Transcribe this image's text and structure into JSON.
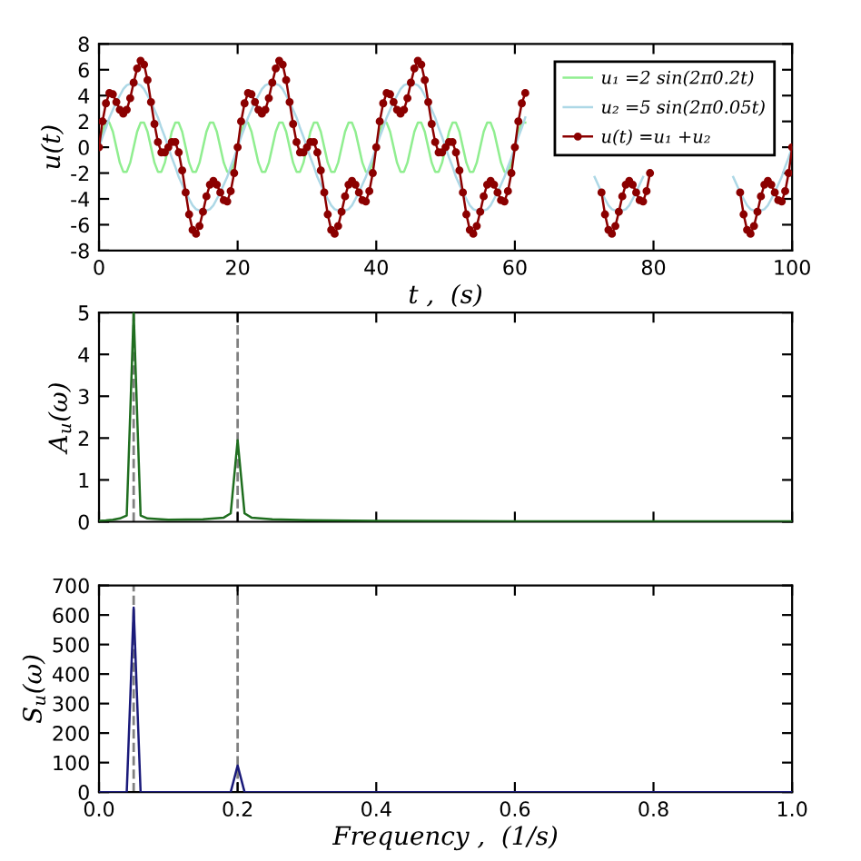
{
  "chart_data": [
    {
      "type": "line",
      "xlabel": "t ,  (s)",
      "ylabel": "u(t)",
      "xlim": [
        0,
        100
      ],
      "xticks": [
        0,
        20,
        40,
        60,
        80,
        100
      ],
      "ylim": [
        -8,
        8
      ],
      "yticks": [
        -8,
        -6,
        -4,
        -2,
        0,
        2,
        4,
        6,
        8
      ],
      "grid": false,
      "legend": "top right",
      "x": [
        0,
        0.5,
        1,
        1.5,
        2,
        2.5,
        3,
        3.5,
        4,
        4.5,
        5,
        5.5,
        6,
        6.5,
        7,
        7.5,
        8,
        8.5,
        9,
        9.5,
        10,
        10.5,
        11,
        11.5,
        12,
        12.5,
        13,
        13.5,
        14,
        14.5,
        15,
        15.5,
        16,
        16.5,
        17,
        17.5,
        18,
        18.5,
        19,
        19.5,
        20,
        20.5,
        21,
        21.5,
        22,
        22.5,
        23,
        23.5,
        24,
        24.5,
        25,
        25.5,
        26,
        26.5,
        27,
        27.5,
        28,
        28.5,
        29,
        29.5,
        30,
        30.5,
        31,
        31.5,
        32,
        32.5,
        33,
        33.5,
        34,
        34.5,
        35,
        35.5,
        36,
        36.5,
        37,
        37.5,
        38,
        38.5,
        39,
        39.5,
        40,
        40.5,
        41,
        41.5,
        42,
        42.5,
        43,
        43.5,
        44,
        44.5,
        45,
        45.5,
        46,
        46.5,
        47,
        47.5,
        48,
        48.5,
        49,
        49.5,
        50,
        50.5,
        51,
        51.5,
        52,
        52.5,
        53,
        53.5,
        54,
        54.5,
        55,
        55.5,
        56,
        56.5,
        57,
        57.5,
        58,
        58.5,
        59,
        59.5,
        60,
        60.5,
        61,
        61.5,
        62,
        62.5,
        63,
        63.5,
        64,
        64.5,
        65,
        65.5,
        66,
        66.5,
        67,
        67.5,
        68,
        68.5,
        69,
        69.5,
        70,
        70.5,
        71,
        71.5,
        72,
        72.5,
        73,
        73.5,
        74,
        74.5,
        75,
        75.5,
        76,
        76.5,
        77,
        77.5,
        78,
        78.5,
        79,
        79.5,
        80,
        80.5,
        81,
        81.5,
        82,
        82.5,
        83,
        83.5,
        84,
        84.5,
        85,
        85.5,
        86,
        86.5,
        87,
        87.5,
        88,
        88.5,
        89,
        89.5,
        90,
        90.5,
        91,
        91.5,
        92,
        92.5,
        93,
        93.5,
        94,
        94.5,
        95,
        95.5,
        96,
        96.5,
        97,
        97.5,
        98,
        98.5,
        99,
        99.5,
        100
      ],
      "series": [
        {
          "name": "u₁ =2 sin(2π0.2t)",
          "color": "#90ee90",
          "marker": "none",
          "values": [
            0,
            1.2,
            1.9,
            1.9,
            1.2,
            0,
            -1.2,
            -1.9,
            -1.9,
            -1.2,
            0,
            1.2,
            1.9,
            1.9,
            1.2,
            0,
            -1.2,
            -1.9,
            -1.9,
            -1.2,
            0,
            1.2,
            1.9,
            1.9,
            1.2,
            0,
            -1.2,
            -1.9,
            -1.9,
            -1.2,
            0,
            1.2,
            1.9,
            1.9,
            1.2,
            0,
            -1.2,
            -1.9,
            -1.9,
            -1.2,
            0,
            1.2,
            1.9,
            1.9,
            1.2,
            0,
            -1.2,
            -1.9,
            -1.9,
            -1.2,
            0,
            1.2,
            1.9,
            1.9,
            1.2,
            0,
            -1.2,
            -1.9,
            -1.9,
            -1.2,
            0,
            1.2,
            1.9,
            1.9,
            1.2,
            0,
            -1.2,
            -1.9,
            -1.9,
            -1.2,
            0,
            1.2,
            1.9,
            1.9,
            1.2,
            0,
            -1.2,
            -1.9,
            -1.9,
            -1.2,
            0,
            1.2,
            1.9,
            1.9,
            1.2,
            0,
            -1.2,
            -1.9,
            -1.9,
            -1.2,
            0,
            1.2,
            1.9,
            1.9,
            1.2,
            0,
            -1.2,
            -1.9,
            -1.9,
            -1.2,
            0,
            1.2,
            1.9,
            1.9,
            1.2,
            0,
            -1.2,
            -1.9,
            -1.9,
            -1.2,
            0,
            1.2,
            1.9,
            1.9,
            1.2,
            0,
            -1.2,
            -1.9,
            -1.9,
            -1.2,
            0,
            1.2,
            1.9,
            1.9,
            null,
            null,
            null,
            null,
            null,
            null,
            null,
            null,
            null,
            null,
            null,
            null,
            null,
            null,
            null,
            null,
            null,
            null,
            null,
            null,
            null,
            null,
            null,
            null,
            null,
            null,
            null,
            null,
            null,
            null,
            null,
            null,
            null,
            null,
            null,
            null,
            null,
            null,
            null,
            null,
            null,
            null,
            null,
            null,
            null,
            null,
            null,
            null,
            null,
            null,
            null,
            null,
            null,
            null,
            null,
            null,
            null,
            null,
            null,
            null,
            null,
            null,
            null,
            null,
            null,
            null,
            null,
            null,
            null,
            null,
            null,
            null,
            null,
            null,
            null,
            null,
            null
          ]
        },
        {
          "name": "u₂ =5 sin(2π0.05t)",
          "color": "#add8e6",
          "marker": "none",
          "values": [
            0,
            0.8,
            1.5,
            2.3,
            2.9,
            3.5,
            4.0,
            4.5,
            4.8,
            4.9,
            5.0,
            4.9,
            4.8,
            4.5,
            4.0,
            3.5,
            2.9,
            2.3,
            1.5,
            0.8,
            0,
            -0.8,
            -1.5,
            -2.3,
            -2.9,
            -3.5,
            -4.0,
            -4.5,
            -4.8,
            -4.9,
            -5.0,
            -4.9,
            -4.8,
            -4.5,
            -4.0,
            -3.5,
            -2.9,
            -2.3,
            -1.5,
            -0.8,
            0,
            0.8,
            1.5,
            2.3,
            2.9,
            3.5,
            4.0,
            4.5,
            4.8,
            4.9,
            5.0,
            4.9,
            4.8,
            4.5,
            4.0,
            3.5,
            2.9,
            2.3,
            1.5,
            0.8,
            0,
            -0.8,
            -1.5,
            -2.3,
            -2.9,
            -3.5,
            -4.0,
            -4.5,
            -4.8,
            -4.9,
            -5.0,
            -4.9,
            -4.8,
            -4.5,
            -4.0,
            -3.5,
            -2.9,
            -2.3,
            -1.5,
            -0.8,
            0,
            0.8,
            1.5,
            2.3,
            2.9,
            3.5,
            4.0,
            4.5,
            4.8,
            4.9,
            5.0,
            4.9,
            4.8,
            4.5,
            4.0,
            3.5,
            2.9,
            2.3,
            1.5,
            0.8,
            0,
            -0.8,
            -1.5,
            -2.3,
            -2.9,
            -3.5,
            -4.0,
            -4.5,
            -4.8,
            -4.9,
            -5.0,
            -4.9,
            -4.8,
            -4.5,
            -4.0,
            -3.5,
            -2.9,
            -2.3,
            -1.5,
            -0.8,
            0,
            0.8,
            1.5,
            2.3,
            null,
            null,
            null,
            null,
            null,
            null,
            null,
            null,
            null,
            null,
            null,
            null,
            null,
            null,
            null,
            null,
            null,
            null,
            null,
            -2.3,
            -2.9,
            -3.5,
            -4.0,
            -4.5,
            -4.8,
            -4.9,
            -5.0,
            -4.9,
            -4.8,
            -4.5,
            -4.0,
            -3.5,
            -2.9,
            -2.3,
            null,
            null,
            null,
            null,
            null,
            null,
            null,
            null,
            null,
            null,
            null,
            null,
            null,
            null,
            null,
            null,
            null,
            null,
            null,
            null,
            null,
            null,
            null,
            null,
            null,
            -2.3,
            -2.9,
            -3.5,
            -4.0,
            -4.5,
            -4.8,
            -4.9,
            -5.0,
            -4.9,
            -4.8,
            -4.5,
            -4.0,
            -3.5,
            -2.9,
            -2.3,
            -1.5,
            -0.8,
            0
          ]
        },
        {
          "name": "u(t) =u₁ +u₂",
          "color": "#8b0000",
          "marker": "circle",
          "values": [
            0,
            2.0,
            3.4,
            4.2,
            4.1,
            3.5,
            2.9,
            2.6,
            2.9,
            3.8,
            5.0,
            6.1,
            6.7,
            6.4,
            5.2,
            3.5,
            1.8,
            0.4,
            -0.4,
            -0.4,
            0,
            0.4,
            0.4,
            -0.4,
            -1.8,
            -3.5,
            -5.2,
            -6.4,
            -6.7,
            -6.1,
            -5.0,
            -3.8,
            -2.9,
            -2.6,
            -2.9,
            -3.5,
            -4.1,
            -4.2,
            -3.4,
            -2.0,
            0,
            2.0,
            3.4,
            4.2,
            4.1,
            3.5,
            2.9,
            2.6,
            2.9,
            3.8,
            5.0,
            6.1,
            6.7,
            6.4,
            5.2,
            3.5,
            1.8,
            0.4,
            -0.4,
            -0.4,
            0,
            0.4,
            0.4,
            -0.4,
            -1.8,
            -3.5,
            -5.2,
            -6.4,
            -6.7,
            -6.1,
            -5.0,
            -3.8,
            -2.9,
            -2.6,
            -2.9,
            -3.5,
            -4.1,
            -4.2,
            -3.4,
            -2.0,
            0,
            2.0,
            3.4,
            4.2,
            4.1,
            3.5,
            2.9,
            2.6,
            2.9,
            3.8,
            5.0,
            6.1,
            6.7,
            6.4,
            5.2,
            3.5,
            1.8,
            0.4,
            -0.4,
            -0.4,
            0,
            0.4,
            0.4,
            -0.4,
            -1.8,
            -3.5,
            -5.2,
            -6.4,
            -6.7,
            -6.1,
            -5.0,
            -3.8,
            -2.9,
            -2.6,
            -2.9,
            -3.5,
            -4.1,
            -4.2,
            -3.4,
            -2.0,
            0,
            2.0,
            3.4,
            4.2,
            null,
            null,
            null,
            null,
            null,
            null,
            null,
            null,
            null,
            null,
            null,
            null,
            null,
            null,
            null,
            null,
            null,
            null,
            null,
            null,
            null,
            -3.5,
            -5.2,
            -6.4,
            -6.7,
            -6.1,
            -5.0,
            -3.8,
            -2.9,
            -2.6,
            -2.9,
            -3.5,
            -4.1,
            -4.2,
            -3.4,
            -2.0,
            null,
            null,
            null,
            null,
            null,
            null,
            null,
            null,
            null,
            null,
            null,
            null,
            null,
            null,
            null,
            null,
            null,
            null,
            null,
            null,
            null,
            null,
            null,
            null,
            null,
            -3.5,
            -5.2,
            -6.4,
            -6.7,
            -6.1,
            -5.0,
            -3.8,
            -2.9,
            -2.6,
            -2.9,
            -3.5,
            -4.1,
            -4.2,
            -3.4,
            -2.0,
            0
          ]
        }
      ]
    },
    {
      "type": "line",
      "ylabel": "A$_{u}$(ω)",
      "xlim": [
        0,
        1
      ],
      "xticks": [
        0,
        0.2,
        0.4,
        0.6,
        0.8,
        1
      ],
      "ylim": [
        0,
        5
      ],
      "yticks": [
        0,
        1,
        2,
        3,
        4,
        5
      ],
      "grid": false,
      "tick_labels": "y",
      "series": [
        {
          "color": "#1f6e1f",
          "marker": "none",
          "x": [
            0,
            0.01,
            0.02,
            0.03,
            0.04,
            0.05,
            0.06,
            0.07,
            0.1,
            0.15,
            0.18,
            0.19,
            0.2,
            0.21,
            0.22,
            0.25,
            0.3,
            0.4,
            0.6,
            0.8,
            1.0
          ],
          "values": [
            0.02,
            0.03,
            0.05,
            0.08,
            0.15,
            5.0,
            0.15,
            0.08,
            0.05,
            0.06,
            0.1,
            0.2,
            1.95,
            0.2,
            0.1,
            0.06,
            0.04,
            0.02,
            0.01,
            0.01,
            0.01
          ]
        }
      ],
      "ref_lines": [
        {
          "axis": "x",
          "value": 0.05,
          "color": "#808080",
          "line_style": "dashed"
        },
        {
          "axis": "x",
          "value": 0.2,
          "color": "#808080",
          "line_style": "dashed"
        }
      ]
    },
    {
      "type": "line",
      "xlabel": "Frequency ,  (1/s)",
      "ylabel": "S$_{u}$(ω)",
      "xlim": [
        0,
        1
      ],
      "xticks": [
        {
          "value": 0,
          "label": "0.0"
        },
        0.2,
        0.4,
        0.6,
        0.8,
        {
          "value": 1,
          "label": "1.0"
        }
      ],
      "ylim": [
        0,
        700
      ],
      "yticks": [
        0,
        100,
        200,
        300,
        400,
        500,
        600,
        700
      ],
      "grid": false,
      "series": [
        {
          "color": "#1a1a7a",
          "marker": "none",
          "x": [
            0,
            0.04,
            0.05,
            0.06,
            0.19,
            0.2,
            0.21,
            1.0
          ],
          "values": [
            0,
            0,
            625,
            0,
            0,
            90,
            0,
            0
          ]
        }
      ],
      "ref_lines": [
        {
          "axis": "x",
          "value": 0.05,
          "color": "#808080",
          "line_style": "dashed"
        },
        {
          "axis": "x",
          "value": 0.2,
          "color": "#808080",
          "line_style": "dashed"
        }
      ]
    }
  ]
}
